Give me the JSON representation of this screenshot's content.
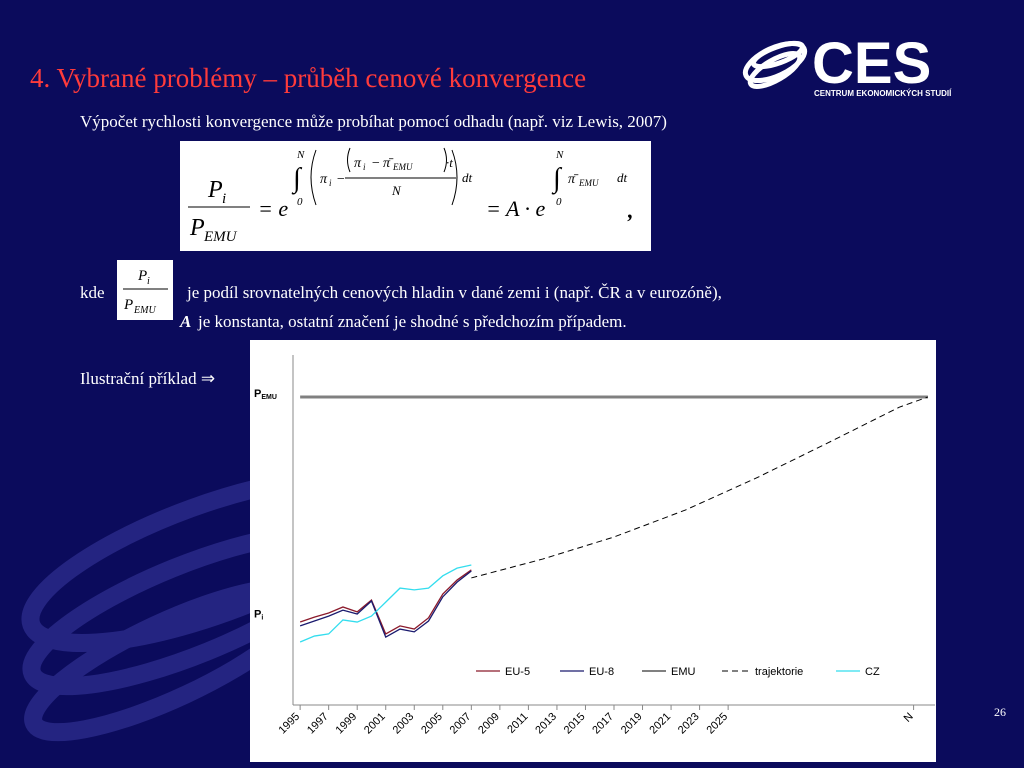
{
  "header": {
    "title": "4. Vybrané problémy – průběh cenové konvergence",
    "logo_text": "CES",
    "logo_subtitle": "CENTRUM EKONOMICKÝCH STUDIÍ"
  },
  "intro": "Výpočet rychlosti konvergence může probíhat pomocí odhadu (např. viz Lewis, 2007)",
  "formula": {
    "p": "P",
    "sub_i": "i",
    "sub_emu": "EMU",
    "eq_e": "= e",
    "integral": "∫",
    "upper": "N",
    "lower": "0",
    "pi": "π",
    "pi_bar": "π̄",
    "minus": "−",
    "times_t": "·t",
    "dt": "dt",
    "eq_ae": "= A · e",
    "comma": ","
  },
  "explanation": {
    "kde": "kde",
    "line1": "je podíl srovnatelných cenových hladin v dané zemi i (např. ČR a v eurozóně),",
    "a": "A",
    "line2": "je konstanta, ostatní značení je shodné s předchozím případem."
  },
  "example": "Ilustrační příklad ⇒",
  "page_number": "26",
  "chart_data": {
    "type": "line",
    "xlim": [
      1994.5,
      2039.5
    ],
    "ylim": [
      0,
      100
    ],
    "xticks": [
      1995,
      1997,
      1999,
      2001,
      2003,
      2005,
      2007,
      2009,
      2011,
      2013,
      2015,
      2017,
      2019,
      2021,
      2023,
      2025,
      {
        "value": 2038,
        "label": "N"
      }
    ],
    "y_labels": [
      {
        "value": 88,
        "label": "P",
        "sub": "EMU"
      },
      {
        "value": 25,
        "label": "P",
        "sub": "i"
      }
    ],
    "series": [
      {
        "name": "EU-5",
        "color": "#8b1a2b",
        "width": 1.3,
        "dash": false,
        "x": [
          1995,
          1996,
          1997,
          1998,
          1999,
          2000,
          2001,
          2002,
          2003,
          2004,
          2005,
          2006,
          2007
        ],
        "values": [
          23.7,
          25.1,
          26.3,
          28.0,
          26.6,
          30.0,
          20.3,
          22.6,
          21.7,
          24.9,
          31.7,
          35.7,
          38.6
        ]
      },
      {
        "name": "EU-8",
        "color": "#1a1a6e",
        "width": 1.3,
        "dash": false,
        "x": [
          1995,
          1996,
          1997,
          1998,
          1999,
          2000,
          2001,
          2002,
          2003,
          2004,
          2005,
          2006,
          2007
        ],
        "values": [
          22.6,
          24.0,
          25.4,
          27.1,
          26.0,
          29.7,
          19.4,
          21.7,
          20.9,
          24.0,
          30.9,
          35.1,
          38.3
        ]
      },
      {
        "name": "EMU",
        "color": "#808080",
        "width": 3,
        "dash": false,
        "x": [
          1995,
          2039
        ],
        "values": [
          88,
          88
        ]
      },
      {
        "name": "trajektorie",
        "color": "#000000",
        "width": 1,
        "dash": true,
        "x": [
          2007,
          2012,
          2017,
          2022,
          2027,
          2032,
          2037,
          2039
        ],
        "values": [
          36.3,
          41.7,
          48.0,
          55.7,
          64.9,
          74.9,
          85.1,
          88
        ]
      },
      {
        "name": "CZ",
        "color": "#33ddee",
        "width": 1.3,
        "dash": false,
        "x": [
          1995,
          1996,
          1997,
          1998,
          1999,
          2000,
          2001,
          2002,
          2003,
          2004,
          2005,
          2006,
          2007
        ],
        "values": [
          18.0,
          19.7,
          20.3,
          24.3,
          23.7,
          25.4,
          29.4,
          33.4,
          32.9,
          33.4,
          36.9,
          39.1,
          40.0
        ]
      }
    ]
  }
}
